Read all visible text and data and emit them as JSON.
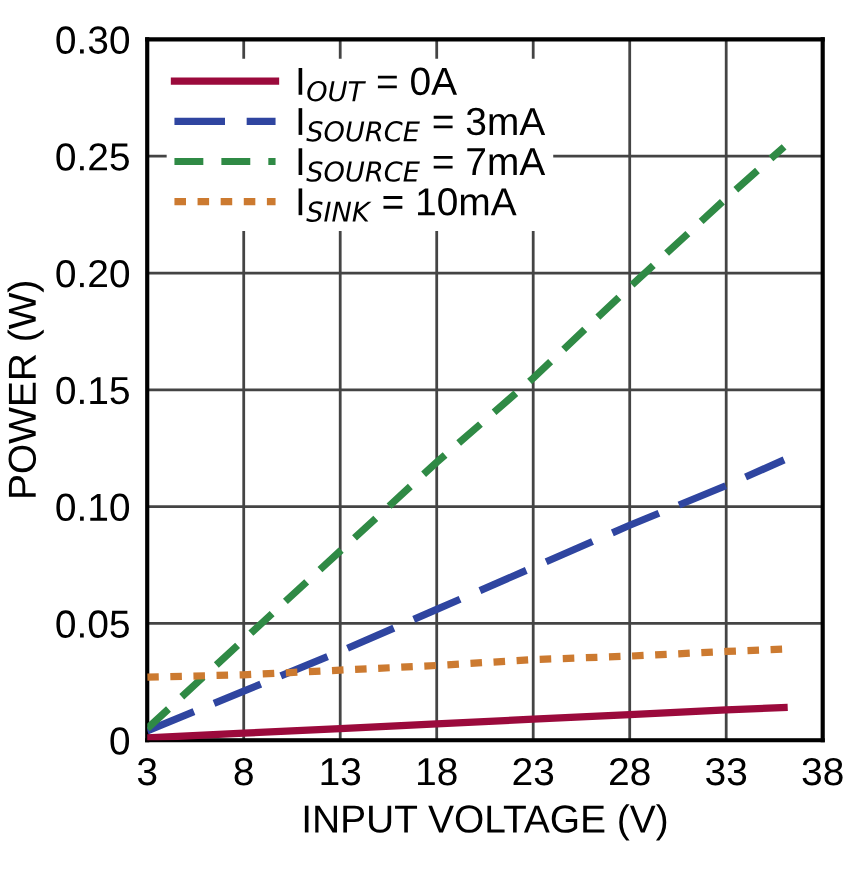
{
  "chart_data": {
    "type": "line",
    "xlabel": "INPUT VOLTAGE (V)",
    "ylabel": "POWER (W)",
    "xlim": [
      3,
      38
    ],
    "xticks": [
      3,
      8,
      13,
      18,
      23,
      28,
      33,
      38
    ],
    "ylim": [
      0,
      0.3
    ],
    "yticks": [
      {
        "value": 0,
        "label": "0"
      },
      0.05,
      {
        "value": 0.1,
        "label": "0.10"
      },
      0.15,
      {
        "value": 0.2,
        "label": "0.20"
      },
      0.25,
      {
        "value": 0.3,
        "label": "0.30"
      }
    ],
    "grid": true,
    "legend": "top left",
    "x": [
      3,
      8,
      13,
      18,
      23,
      28,
      33,
      36
    ],
    "series": [
      {
        "name": "I$_{OUT}$ = 0A",
        "color": "#9b0a3c",
        "line_style": "solid",
        "values": [
          0.001,
          0.003,
          0.005,
          0.007,
          0.009,
          0.011,
          0.013,
          0.014
        ]
      },
      {
        "name": "I$_{SOURCE}$ = 3mA",
        "color": "#2f45a0",
        "line_style": "longdash",
        "values": [
          0.004,
          0.021,
          0.038,
          0.056,
          0.074,
          0.092,
          0.109,
          0.12
        ]
      },
      {
        "name": "I$_{SOURCE}$ = 7mA",
        "color": "#2f8a45",
        "line_style": "dashed",
        "values": [
          0.005,
          0.043,
          0.081,
          0.119,
          0.155,
          0.194,
          0.232,
          0.254
        ]
      },
      {
        "name": "I$_{SINK}$ = 10mA",
        "color": "#cc7a30",
        "line_style": "dotted",
        "values": [
          0.027,
          0.028,
          0.03,
          0.032,
          0.0345,
          0.036,
          0.038,
          0.039
        ]
      }
    ]
  }
}
